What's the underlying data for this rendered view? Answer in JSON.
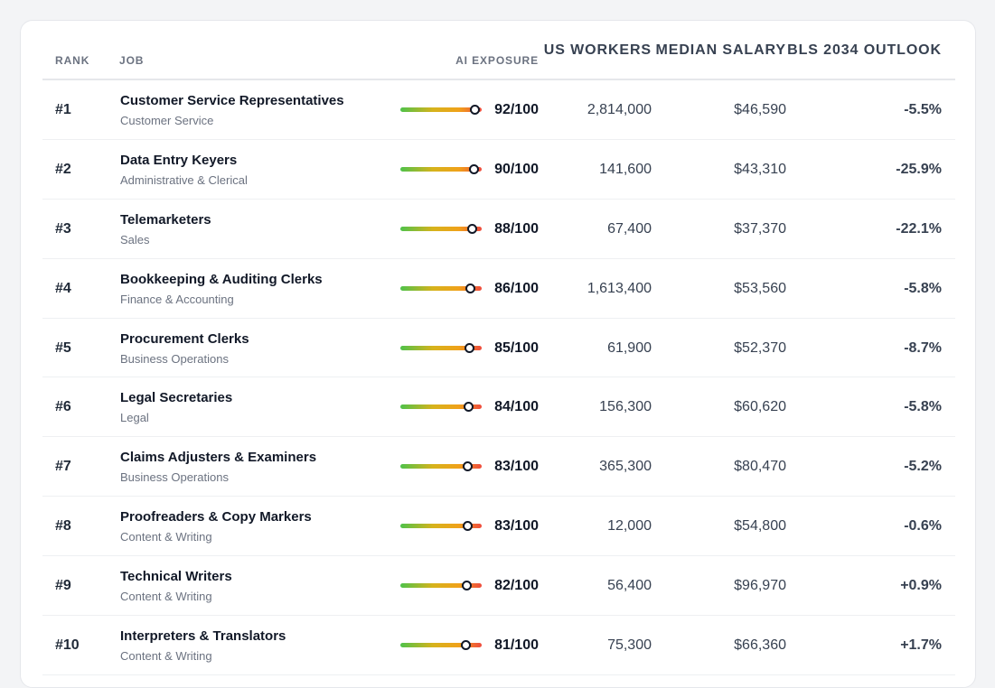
{
  "table": {
    "headers": {
      "rank": "RANK",
      "job": "JOB",
      "ai_exposure": "AI EXPOSURE",
      "us_workers": "US WORKERS",
      "median_salary": "MEDIAN SALARY",
      "outlook": "BLS 2034 OUTLOOK"
    },
    "rows": [
      {
        "rank": "#1",
        "title": "Customer Service Representatives",
        "category": "Customer Service",
        "score": 92,
        "score_text": "92/100",
        "workers": "2,814,000",
        "salary": "$46,590",
        "outlook": "-5.5%"
      },
      {
        "rank": "#2",
        "title": "Data Entry Keyers",
        "category": "Administrative & Clerical",
        "score": 90,
        "score_text": "90/100",
        "workers": "141,600",
        "salary": "$43,310",
        "outlook": "-25.9%"
      },
      {
        "rank": "#3",
        "title": "Telemarketers",
        "category": "Sales",
        "score": 88,
        "score_text": "88/100",
        "workers": "67,400",
        "salary": "$37,370",
        "outlook": "-22.1%"
      },
      {
        "rank": "#4",
        "title": "Bookkeeping & Auditing Clerks",
        "category": "Finance & Accounting",
        "score": 86,
        "score_text": "86/100",
        "workers": "1,613,400",
        "salary": "$53,560",
        "outlook": "-5.8%"
      },
      {
        "rank": "#5",
        "title": "Procurement Clerks",
        "category": "Business Operations",
        "score": 85,
        "score_text": "85/100",
        "workers": "61,900",
        "salary": "$52,370",
        "outlook": "-8.7%"
      },
      {
        "rank": "#6",
        "title": "Legal Secretaries",
        "category": "Legal",
        "score": 84,
        "score_text": "84/100",
        "workers": "156,300",
        "salary": "$60,620",
        "outlook": "-5.8%"
      },
      {
        "rank": "#7",
        "title": "Claims Adjusters & Examiners",
        "category": "Business Operations",
        "score": 83,
        "score_text": "83/100",
        "workers": "365,300",
        "salary": "$80,470",
        "outlook": "-5.2%"
      },
      {
        "rank": "#8",
        "title": "Proofreaders & Copy Markers",
        "category": "Content & Writing",
        "score": 83,
        "score_text": "83/100",
        "workers": "12,000",
        "salary": "$54,800",
        "outlook": "-0.6%"
      },
      {
        "rank": "#9",
        "title": "Technical Writers",
        "category": "Content & Writing",
        "score": 82,
        "score_text": "82/100",
        "workers": "56,400",
        "salary": "$96,970",
        "outlook": "+0.9%"
      },
      {
        "rank": "#10",
        "title": "Interpreters & Translators",
        "category": "Content & Writing",
        "score": 81,
        "score_text": "81/100",
        "workers": "75,300",
        "salary": "$66,360",
        "outlook": "+1.7%"
      }
    ]
  },
  "colors": {
    "bar_low": "#4ec24a",
    "bar_mid": "#f0a11a",
    "bar_high": "#ef4b3e",
    "card_bg": "#ffffff",
    "page_bg": "#f3f4f6"
  }
}
